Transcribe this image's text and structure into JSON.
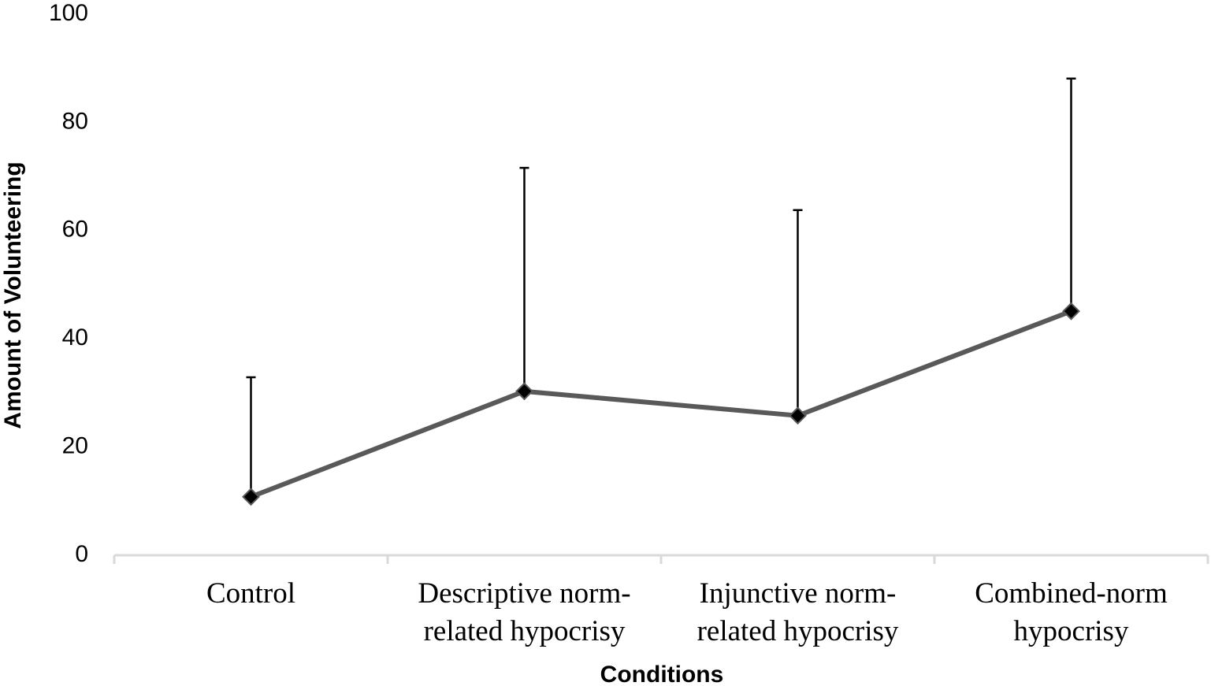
{
  "chart_data": {
    "type": "line",
    "x_label": "Conditions",
    "y_label": "Amount of Volunteering",
    "categories": [
      "Control",
      "Descriptive norm-related hypocrisy",
      "Injunctive norm-related hypocrisy",
      "Combined-norm hypocrisy"
    ],
    "values": [
      10.8,
      30.3,
      25.8,
      45.1
    ],
    "errors": [
      22.1,
      41.3,
      38.0,
      43.0
    ],
    "color": "#595959",
    "ylim": [
      0,
      100
    ],
    "yticks": [
      0,
      20,
      40,
      60,
      80,
      100
    ]
  }
}
